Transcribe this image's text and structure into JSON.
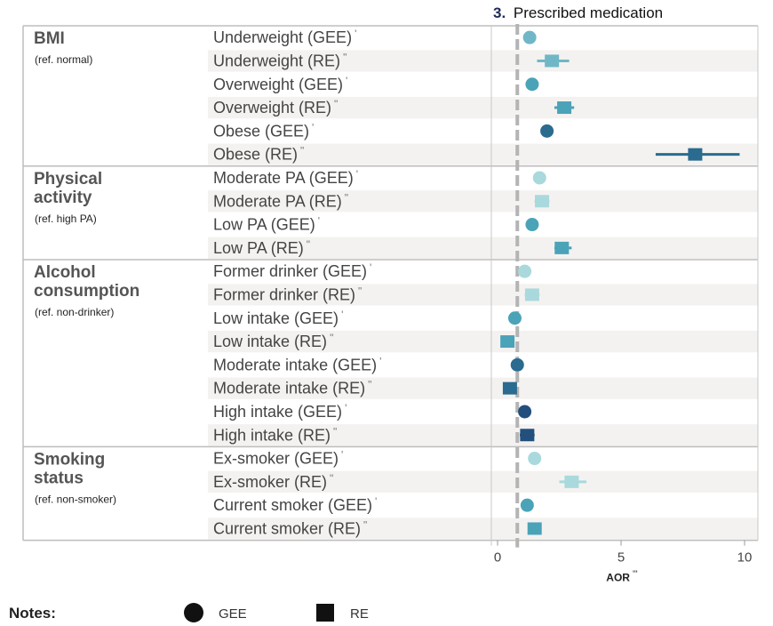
{
  "chart_data": {
    "type": "forest",
    "title_number": "3.",
    "title": "Prescribed medication",
    "xlabel": "AOR",
    "xlabel_superscript": "'''",
    "xlim": [
      0,
      10
    ],
    "xticks": [
      0,
      5,
      10
    ],
    "reference_line": 0.8,
    "groups": [
      {
        "name": "BMI",
        "ref": "(ref. normal)",
        "rows": [
          {
            "label": "Underweight (GEE)",
            "mark": "'",
            "model": "GEE",
            "est": 1.3,
            "lo": 1.2,
            "hi": 1.4,
            "color": "#6fb7c7"
          },
          {
            "label": "Underweight (RE)",
            "mark": "\"",
            "model": "RE",
            "est": 2.2,
            "lo": 1.6,
            "hi": 2.9,
            "color": "#6fb7c7"
          },
          {
            "label": "Overweight (GEE)",
            "mark": "'",
            "model": "GEE",
            "est": 1.4,
            "lo": 1.3,
            "hi": 1.5,
            "color": "#4ba3b8"
          },
          {
            "label": "Overweight (RE)",
            "mark": "\"",
            "model": "RE",
            "est": 2.7,
            "lo": 2.3,
            "hi": 3.1,
            "color": "#4ba3b8"
          },
          {
            "label": "Obese (GEE)",
            "mark": "'",
            "model": "GEE",
            "est": 2.0,
            "lo": 1.9,
            "hi": 2.1,
            "color": "#2a6b8f"
          },
          {
            "label": "Obese (RE)",
            "mark": "\"",
            "model": "RE",
            "est": 8.0,
            "lo": 6.4,
            "hi": 9.8,
            "color": "#2a6b8f"
          }
        ]
      },
      {
        "name": "Physical activity",
        "name_lines": [
          "Physical",
          "activity"
        ],
        "ref": "(ref. high PA)",
        "rows": [
          {
            "label": "Moderate PA (GEE)",
            "mark": "'",
            "model": "GEE",
            "est": 1.7,
            "lo": 1.6,
            "hi": 1.8,
            "color": "#a9d9dc"
          },
          {
            "label": "Moderate PA (RE)",
            "mark": "\"",
            "model": "RE",
            "est": 1.8,
            "lo": 1.5,
            "hi": 2.1,
            "color": "#a9d9dc"
          },
          {
            "label": "Low PA (GEE)",
            "mark": "'",
            "model": "GEE",
            "est": 1.4,
            "lo": 1.3,
            "hi": 1.5,
            "color": "#4ba3b8"
          },
          {
            "label": "Low PA (RE)",
            "mark": "\"",
            "model": "RE",
            "est": 2.6,
            "lo": 2.3,
            "hi": 3.0,
            "color": "#4ba3b8"
          }
        ]
      },
      {
        "name": "Alcohol consumption",
        "name_lines": [
          "Alcohol",
          "consumption"
        ],
        "ref": "(ref. non-drinker)",
        "rows": [
          {
            "label": "Former drinker (GEE)",
            "mark": "'",
            "model": "GEE",
            "est": 1.1,
            "lo": 1.0,
            "hi": 1.2,
            "color": "#a9d9dc"
          },
          {
            "label": "Former drinker (RE)",
            "mark": "\"",
            "model": "RE",
            "est": 1.4,
            "lo": 1.1,
            "hi": 1.7,
            "color": "#a9d9dc"
          },
          {
            "label": "Low intake (GEE)",
            "mark": "'",
            "model": "GEE",
            "est": 0.7,
            "lo": 0.6,
            "hi": 0.8,
            "color": "#4ba3b8"
          },
          {
            "label": "Low intake (RE)",
            "mark": "\"",
            "model": "RE",
            "est": 0.4,
            "lo": 0.2,
            "hi": 0.6,
            "color": "#4ba3b8"
          },
          {
            "label": "Moderate intake (GEE)",
            "mark": "'",
            "model": "GEE",
            "est": 0.8,
            "lo": 0.7,
            "hi": 0.9,
            "color": "#2a6b8f"
          },
          {
            "label": "Moderate intake (RE)",
            "mark": "\"",
            "model": "RE",
            "est": 0.5,
            "lo": 0.3,
            "hi": 0.7,
            "color": "#2a6b8f"
          },
          {
            "label": "High intake (GEE)",
            "mark": "'",
            "model": "GEE",
            "est": 1.1,
            "lo": 1.0,
            "hi": 1.2,
            "color": "#234f7d"
          },
          {
            "label": "High intake (RE)",
            "mark": "\"",
            "model": "RE",
            "est": 1.2,
            "lo": 0.9,
            "hi": 1.5,
            "color": "#234f7d"
          }
        ]
      },
      {
        "name": "Smoking status",
        "name_lines": [
          "Smoking",
          "status"
        ],
        "ref": "(ref. non-smoker)",
        "rows": [
          {
            "label": "Ex-smoker (GEE)",
            "mark": "'",
            "model": "GEE",
            "est": 1.5,
            "lo": 1.4,
            "hi": 1.6,
            "color": "#a9d9dc"
          },
          {
            "label": "Ex-smoker (RE)",
            "mark": "\"",
            "model": "RE",
            "est": 3.0,
            "lo": 2.5,
            "hi": 3.6,
            "color": "#a9d9dc"
          },
          {
            "label": "Current smoker (GEE)",
            "mark": "'",
            "model": "GEE",
            "est": 1.2,
            "lo": 1.1,
            "hi": 1.3,
            "color": "#4ba3b8"
          },
          {
            "label": "Current smoker (RE)",
            "mark": "\"",
            "model": "RE",
            "est": 1.5,
            "lo": 1.3,
            "hi": 1.7,
            "color": "#4ba3b8"
          }
        ]
      }
    ]
  },
  "legend": {
    "title": "Notes:",
    "items": [
      {
        "shape": "circle",
        "label": "GEE"
      },
      {
        "shape": "square",
        "label": "RE"
      }
    ]
  }
}
